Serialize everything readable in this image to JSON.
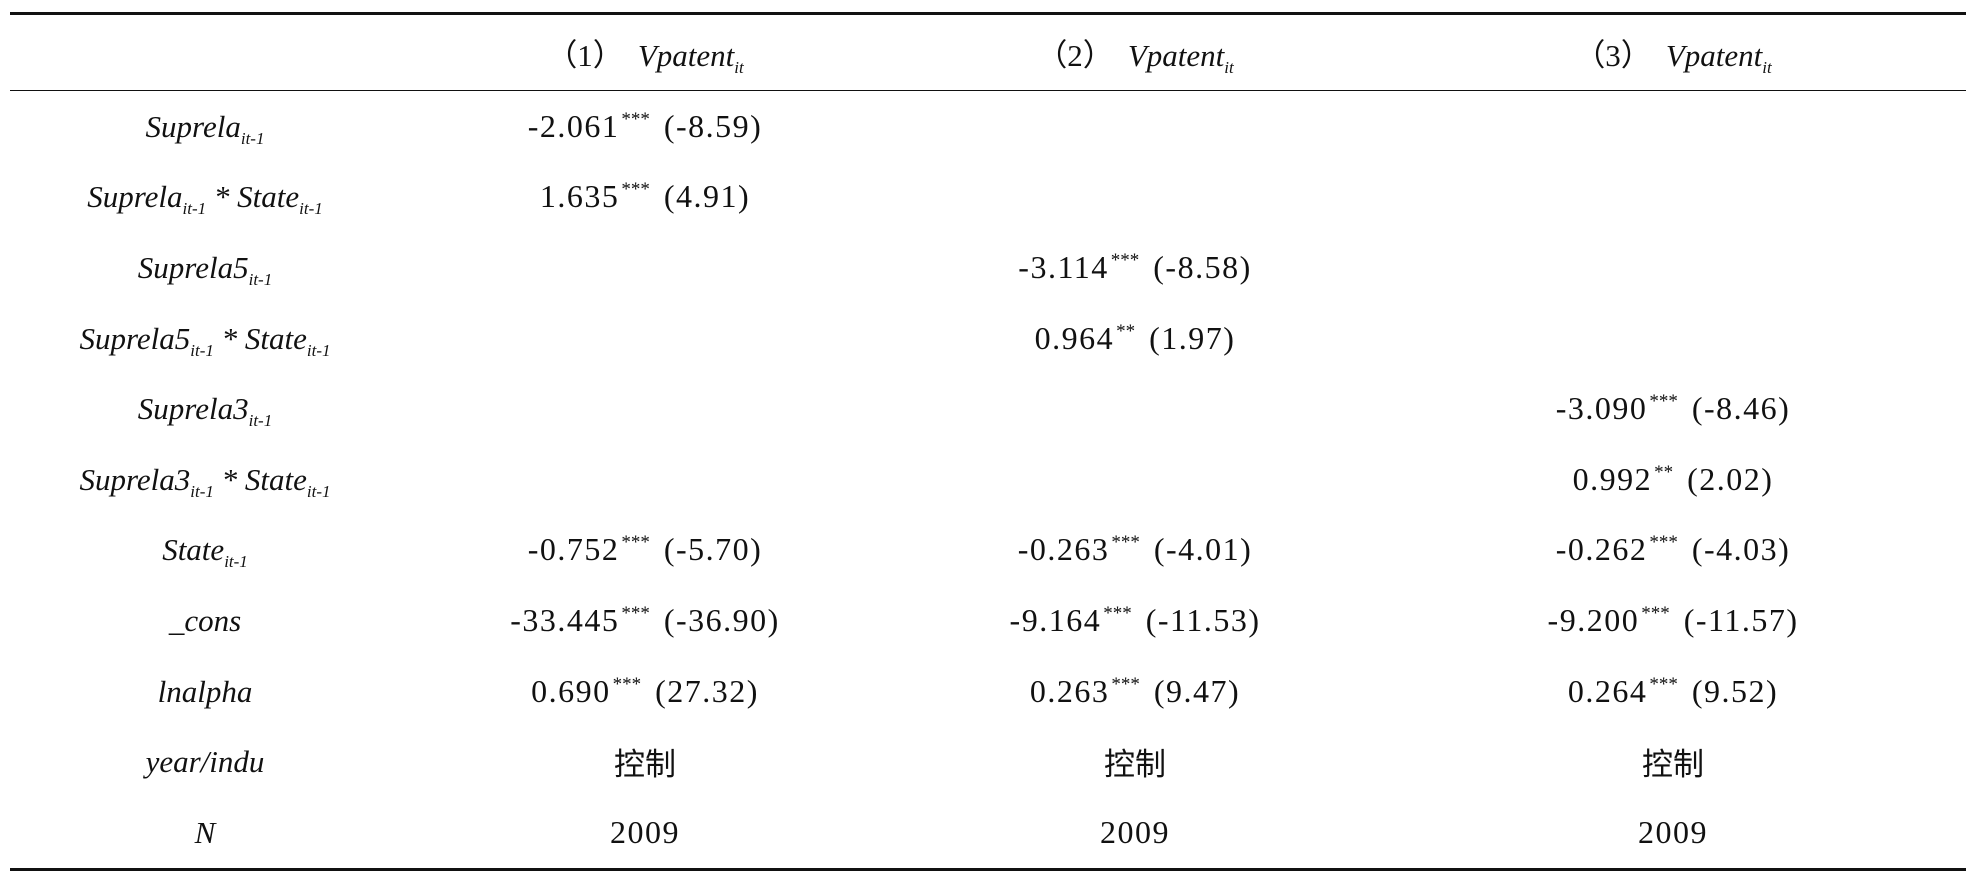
{
  "header": {
    "c1_num": "（1）",
    "c2_num": "（2）",
    "c3_num": "（3）",
    "dep_var": "Vpatent",
    "dep_var_sub": "it"
  },
  "rows": [
    {
      "label": "Suprela",
      "label_sub": "it-1",
      "label_tail": "",
      "label_tail_sub": "",
      "c1_coef": "-2.061",
      "c1_star": "***",
      "c1_t": "(-8.59)",
      "c2_coef": "",
      "c2_star": "",
      "c2_t": "",
      "c3_coef": "",
      "c3_star": "",
      "c3_t": ""
    },
    {
      "label": "Suprela",
      "label_sub": "it-1",
      "label_tail": " * State",
      "label_tail_sub": "it-1",
      "c1_coef": "1.635",
      "c1_star": "***",
      "c1_t": "(4.91)",
      "c2_coef": "",
      "c2_star": "",
      "c2_t": "",
      "c3_coef": "",
      "c3_star": "",
      "c3_t": ""
    },
    {
      "label": "Suprela5",
      "label_sub": "it-1",
      "label_tail": "",
      "label_tail_sub": "",
      "c1_coef": "",
      "c1_star": "",
      "c1_t": "",
      "c2_coef": "-3.114",
      "c2_star": "***",
      "c2_t": "(-8.58)",
      "c3_coef": "",
      "c3_star": "",
      "c3_t": ""
    },
    {
      "label": "Suprela5",
      "label_sub": "it-1",
      "label_tail": " * State",
      "label_tail_sub": "it-1",
      "c1_coef": "",
      "c1_star": "",
      "c1_t": "",
      "c2_coef": "0.964",
      "c2_star": "**",
      "c2_t": "(1.97)",
      "c3_coef": "",
      "c3_star": "",
      "c3_t": ""
    },
    {
      "label": "Suprela3",
      "label_sub": "it-1",
      "label_tail": "",
      "label_tail_sub": "",
      "c1_coef": "",
      "c1_star": "",
      "c1_t": "",
      "c2_coef": "",
      "c2_star": "",
      "c2_t": "",
      "c3_coef": "-3.090",
      "c3_star": "***",
      "c3_t": "(-8.46)"
    },
    {
      "label": "Suprela3",
      "label_sub": "it-1",
      "label_tail": " * State",
      "label_tail_sub": "it-1",
      "c1_coef": "",
      "c1_star": "",
      "c1_t": "",
      "c2_coef": "",
      "c2_star": "",
      "c2_t": "",
      "c3_coef": "0.992",
      "c3_star": "**",
      "c3_t": "(2.02)"
    },
    {
      "label": "State",
      "label_sub": "it-1",
      "label_tail": "",
      "label_tail_sub": "",
      "c1_coef": "-0.752",
      "c1_star": "***",
      "c1_t": "(-5.70)",
      "c2_coef": "-0.263",
      "c2_star": "***",
      "c2_t": "(-4.01)",
      "c3_coef": "-0.262",
      "c3_star": "***",
      "c3_t": "(-4.03)"
    },
    {
      "label": "_cons",
      "label_sub": "",
      "label_tail": "",
      "label_tail_sub": "",
      "c1_coef": "-33.445",
      "c1_star": "***",
      "c1_t": "(-36.90)",
      "c2_coef": "-9.164",
      "c2_star": "***",
      "c2_t": "(-11.53)",
      "c3_coef": "-9.200",
      "c3_star": "***",
      "c3_t": "(-11.57)"
    },
    {
      "label": "lnalpha",
      "label_sub": "",
      "label_tail": "",
      "label_tail_sub": "",
      "c1_coef": "0.690",
      "c1_star": "***",
      "c1_t": "(27.32)",
      "c2_coef": "0.263",
      "c2_star": "***",
      "c2_t": "(9.47)",
      "c3_coef": "0.264",
      "c3_star": "***",
      "c3_t": "(9.52)"
    }
  ],
  "controls_row": {
    "label": "year/indu",
    "c1": "控制",
    "c2": "控制",
    "c3": "控制"
  },
  "n_row": {
    "label": "N",
    "c1": "2009",
    "c2": "2009",
    "c3": "2009"
  }
}
